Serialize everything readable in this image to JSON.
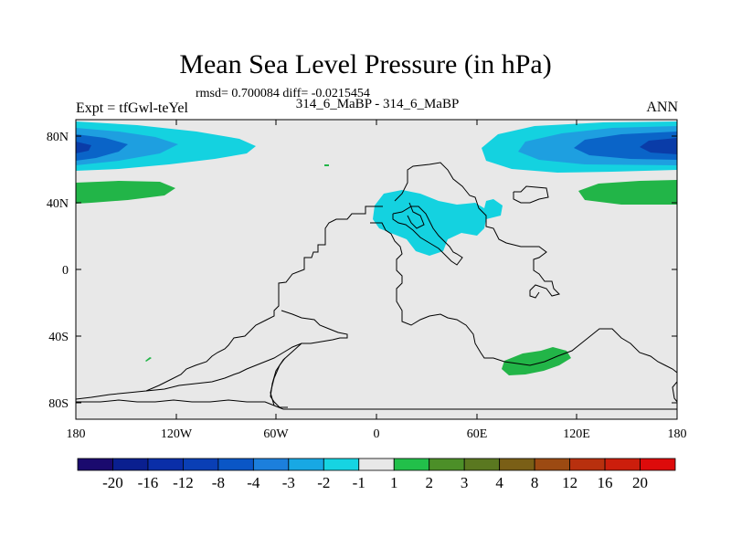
{
  "map": {
    "title": "Mean Sea Level Pressure (in hPa)",
    "stats": "rmsd= 0.700084 diff= -0.0215454",
    "experiment": "Expt = tfGwl-teYel",
    "comparison": "314_6_MaBP - 314_6_MaBP",
    "season": "ANN",
    "lon_ticks": [
      "180",
      "120W",
      "60W",
      "0",
      "60E",
      "120E",
      "180"
    ],
    "lat_ticks": [
      "80N",
      "40N",
      "0",
      "40S",
      "80S"
    ],
    "colors": {
      "background": "#e8e8e8",
      "blue_dark": "#0a3ca8",
      "blue_mid": "#0a64c8",
      "blue_light": "#1e9fe0",
      "cyan": "#14d2e0",
      "green": "#22b548"
    }
  },
  "colorbar": {
    "labels": [
      "-20",
      "-16",
      "-12",
      "-8",
      "-4",
      "-3",
      "-2",
      "-1",
      "1",
      "2",
      "3",
      "4",
      "8",
      "12",
      "16",
      "20"
    ],
    "colors": [
      "#1a0a6e",
      "#0a1f8f",
      "#0a2ea8",
      "#0a3fb5",
      "#0a56c6",
      "#1c7fdc",
      "#18a8e4",
      "#16d4e2",
      "#e8e8e8",
      "#22c04a",
      "#4c8f28",
      "#5a7820",
      "#7a5f16",
      "#9c4a12",
      "#b8300e",
      "#cc1e0c",
      "#dd0b0b"
    ]
  }
}
